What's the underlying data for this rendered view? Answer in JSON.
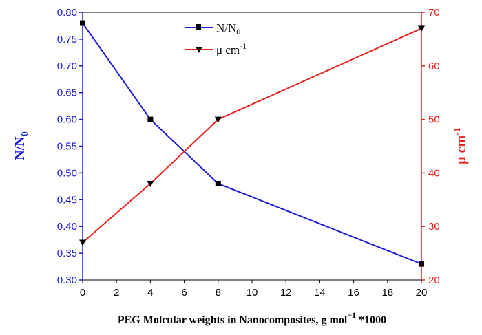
{
  "chart_data": {
    "type": "line",
    "title": "",
    "categories": [
      0,
      4,
      8,
      20
    ],
    "x_ticks": [
      "0",
      "2",
      "4",
      "6",
      "8",
      "10",
      "12",
      "14",
      "16",
      "18",
      "20"
    ],
    "x_range": [
      0,
      20
    ],
    "xlabel_main": "PEG Molcular weights in Nanocomposites, g mol",
    "xlabel_sup": "−1",
    "xlabel_tail": " *1000",
    "left_axis": {
      "label_main": "N/N",
      "label_sub": "0",
      "range": [
        0.3,
        0.8
      ],
      "ticks": [
        "0.30",
        "0.35",
        "0.40",
        "0.45",
        "0.50",
        "0.55",
        "0.60",
        "0.65",
        "0.70",
        "0.75",
        "0.80"
      ],
      "color": "#1a1ad6"
    },
    "right_axis": {
      "label_main": "μ cm",
      "label_sup": "-1",
      "range": [
        20,
        70
      ],
      "ticks": [
        "20",
        "30",
        "40",
        "50",
        "60",
        "70"
      ],
      "color": "#e8221e"
    },
    "series": [
      {
        "name_main": "N/N",
        "name_sub": "0",
        "axis": "left",
        "marker": "square",
        "line_color": "#1a1ad6",
        "x": [
          0,
          4,
          8,
          20
        ],
        "values": [
          0.78,
          0.6,
          0.48,
          0.33
        ]
      },
      {
        "name_main": "μ cm",
        "name_sup": "-1",
        "axis": "right",
        "marker": "triangle-down",
        "line_color": "#e8221e",
        "x": [
          0,
          4,
          8,
          20
        ],
        "values": [
          27,
          38,
          50,
          67
        ]
      }
    ],
    "legend_position": "top-center"
  }
}
